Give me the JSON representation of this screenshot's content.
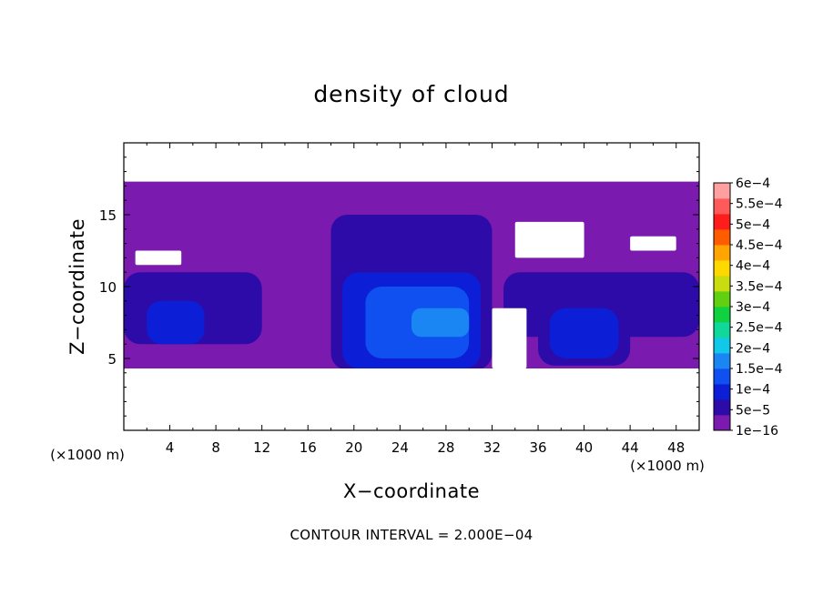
{
  "chart_data": {
    "type": "heatmap",
    "title": "density of cloud",
    "xlabel": "X−coordinate",
    "ylabel": "Z−coordinate",
    "x_unit": "(×1000 m)",
    "y_unit": "(×1000 m)",
    "xlim": [
      0,
      50
    ],
    "ylim": [
      0,
      20
    ],
    "x_ticks": [
      4,
      8,
      12,
      16,
      20,
      24,
      28,
      32,
      36,
      40,
      44,
      48
    ],
    "y_ticks": [
      5,
      10,
      15
    ],
    "footer": "CONTOUR INTERVAL = 2.000E−04",
    "colorbar": {
      "colors": [
        "#7a1aae",
        "#2c0ba8",
        "#0c1fd6",
        "#1050f0",
        "#1a86f4",
        "#12c8e8",
        "#10d89a",
        "#10d240",
        "#60d010",
        "#c8dc10",
        "#ffd800",
        "#ffa400",
        "#ff5c00",
        "#ff1c1c",
        "#ff5a5a",
        "#ffa0a0"
      ],
      "labels": [
        "1e−16",
        "5e−5",
        "1e−4",
        "1.5e−4",
        "2e−4",
        "2.5e−4",
        "3e−4",
        "3.5e−4",
        "4e−4",
        "4.5e−4",
        "5e−4",
        "5.5e−4",
        "6e−4"
      ]
    },
    "field": {
      "background": 1,
      "cells": [
        {
          "x0": 0,
          "x1": 50,
          "z0": 4.5,
          "z1": 16.5,
          "level": 1
        },
        {
          "x0": 3,
          "x1": 12,
          "z0": 16.3,
          "z1": 17.0,
          "level": 1
        },
        {
          "x0": 21,
          "x1": 36,
          "z0": 15.5,
          "z1": 17.2,
          "level": 1
        },
        {
          "x0": 18,
          "x1": 32,
          "z0": 4.2,
          "z1": 15.0,
          "level": 2
        },
        {
          "x0": 0,
          "x1": 12,
          "z0": 6.0,
          "z1": 11.0,
          "level": 2
        },
        {
          "x0": 33,
          "x1": 50,
          "z0": 6.5,
          "z1": 11.0,
          "level": 2
        },
        {
          "x0": 36,
          "x1": 44,
          "z0": 4.5,
          "z1": 10.0,
          "level": 2
        },
        {
          "x0": 19,
          "x1": 31,
          "z0": 4.3,
          "z1": 11.0,
          "level": 3
        },
        {
          "x0": 2,
          "x1": 7,
          "z0": 6.0,
          "z1": 9.0,
          "level": 3
        },
        {
          "x0": 37,
          "x1": 43,
          "z0": 5.0,
          "z1": 8.5,
          "level": 3
        },
        {
          "x0": 21,
          "x1": 30,
          "z0": 5.0,
          "z1": 10.0,
          "level": 4
        },
        {
          "x0": 25,
          "x1": 30,
          "z0": 6.5,
          "z1": 8.5,
          "level": 5
        },
        {
          "x0": 0,
          "x1": 50,
          "z0": 0,
          "z1": 4.3,
          "level": 0
        },
        {
          "x0": 0,
          "x1": 50,
          "z0": 17.3,
          "z1": 20,
          "level": 0
        },
        {
          "x0": 1,
          "x1": 5,
          "z0": 11.5,
          "z1": 12.5,
          "level": 0
        },
        {
          "x0": 34,
          "x1": 40,
          "z0": 12.0,
          "z1": 14.5,
          "level": 0
        },
        {
          "x0": 44,
          "x1": 48,
          "z0": 12.5,
          "z1": 13.5,
          "level": 0
        },
        {
          "x0": 32,
          "x1": 35,
          "z0": 4.3,
          "z1": 8.5,
          "level": 0
        }
      ]
    }
  }
}
